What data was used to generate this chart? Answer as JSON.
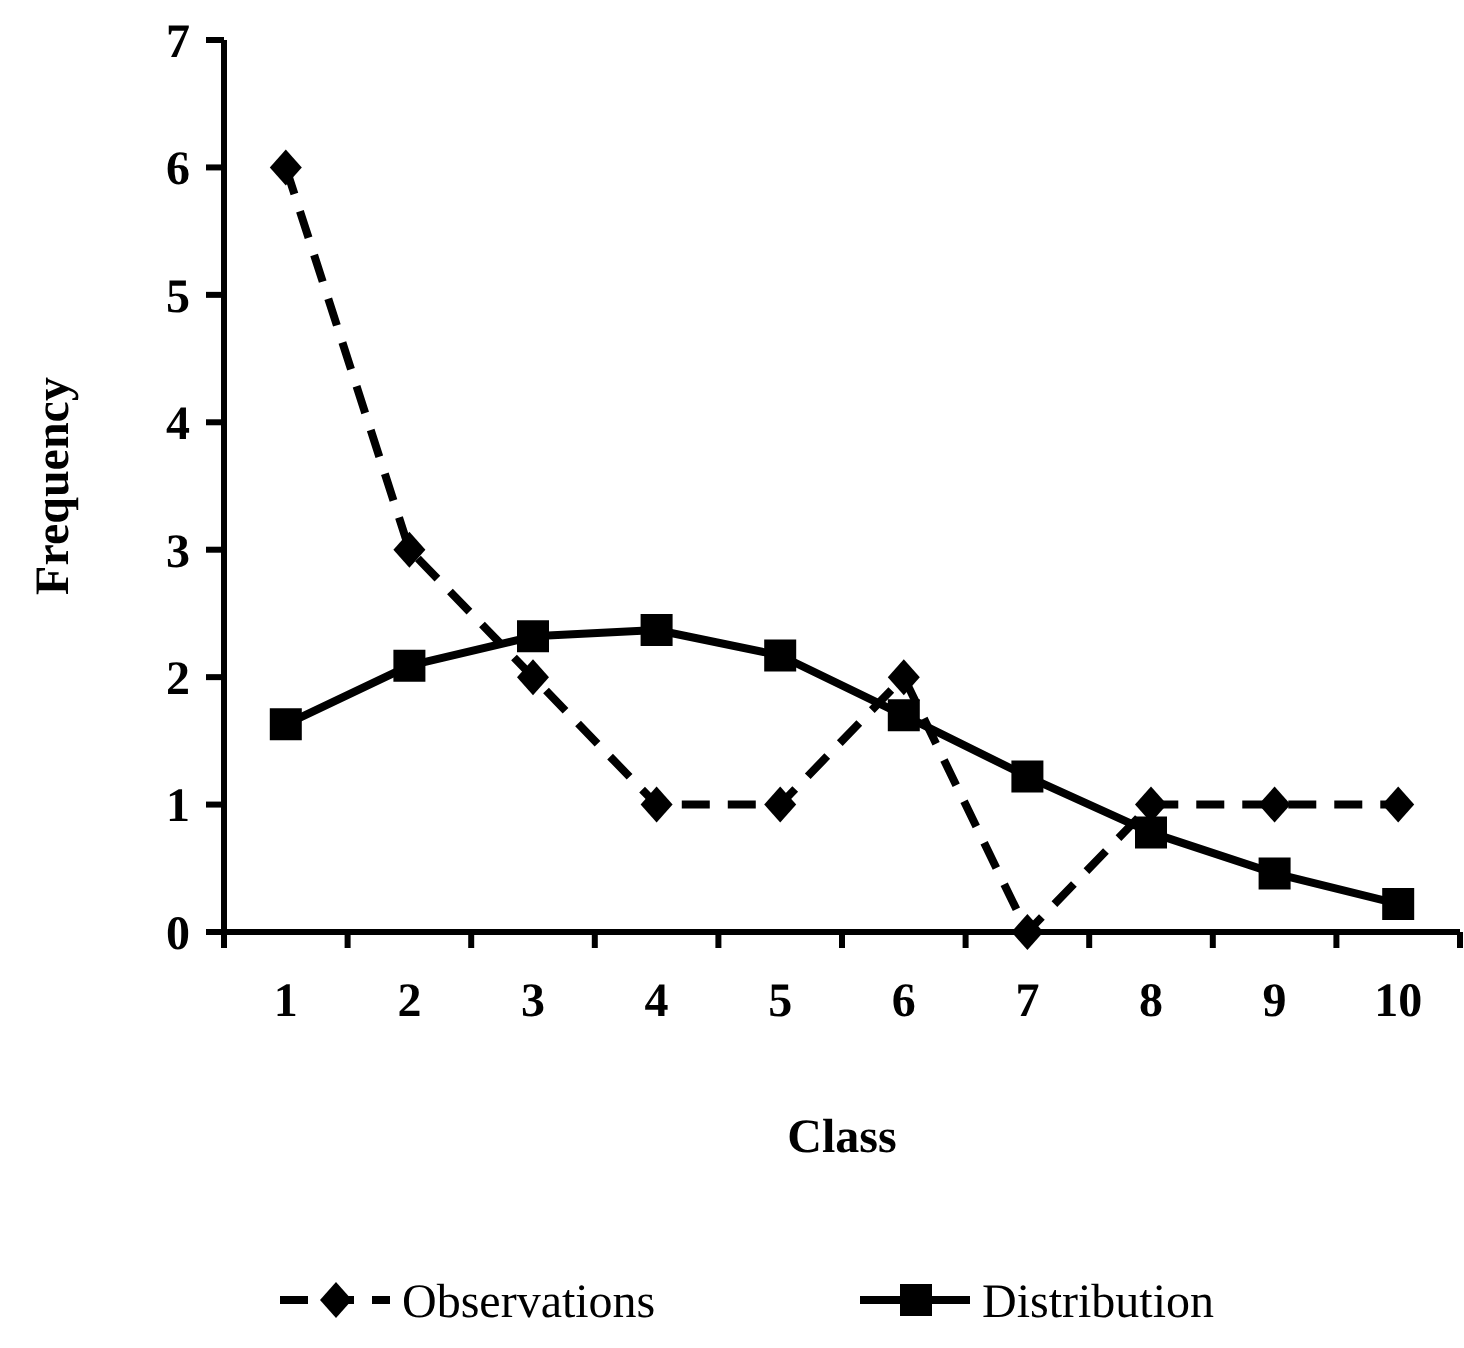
{
  "chart_data": {
    "type": "line",
    "xlabel": "Class",
    "ylabel": "Frequency",
    "categories": [
      "1",
      "2",
      "3",
      "4",
      "5",
      "6",
      "7",
      "8",
      "9",
      "10"
    ],
    "ylim": [
      0,
      7
    ],
    "yticks": [
      0,
      1,
      2,
      3,
      4,
      5,
      6,
      7
    ],
    "grid": false,
    "legend": "bottom",
    "series": [
      {
        "name": "Observations",
        "color": "#000000",
        "values": [
          6,
          3,
          2,
          1,
          1,
          2,
          0,
          1,
          1,
          1
        ],
        "marker": "diamond",
        "line_style": "dashed"
      },
      {
        "name": "Distribution",
        "color": "#000000",
        "values": [
          1.63,
          2.09,
          2.32,
          2.37,
          2.17,
          1.7,
          1.22,
          0.78,
          0.46,
          0.22
        ],
        "marker": "square",
        "line_style": "solid"
      }
    ]
  }
}
